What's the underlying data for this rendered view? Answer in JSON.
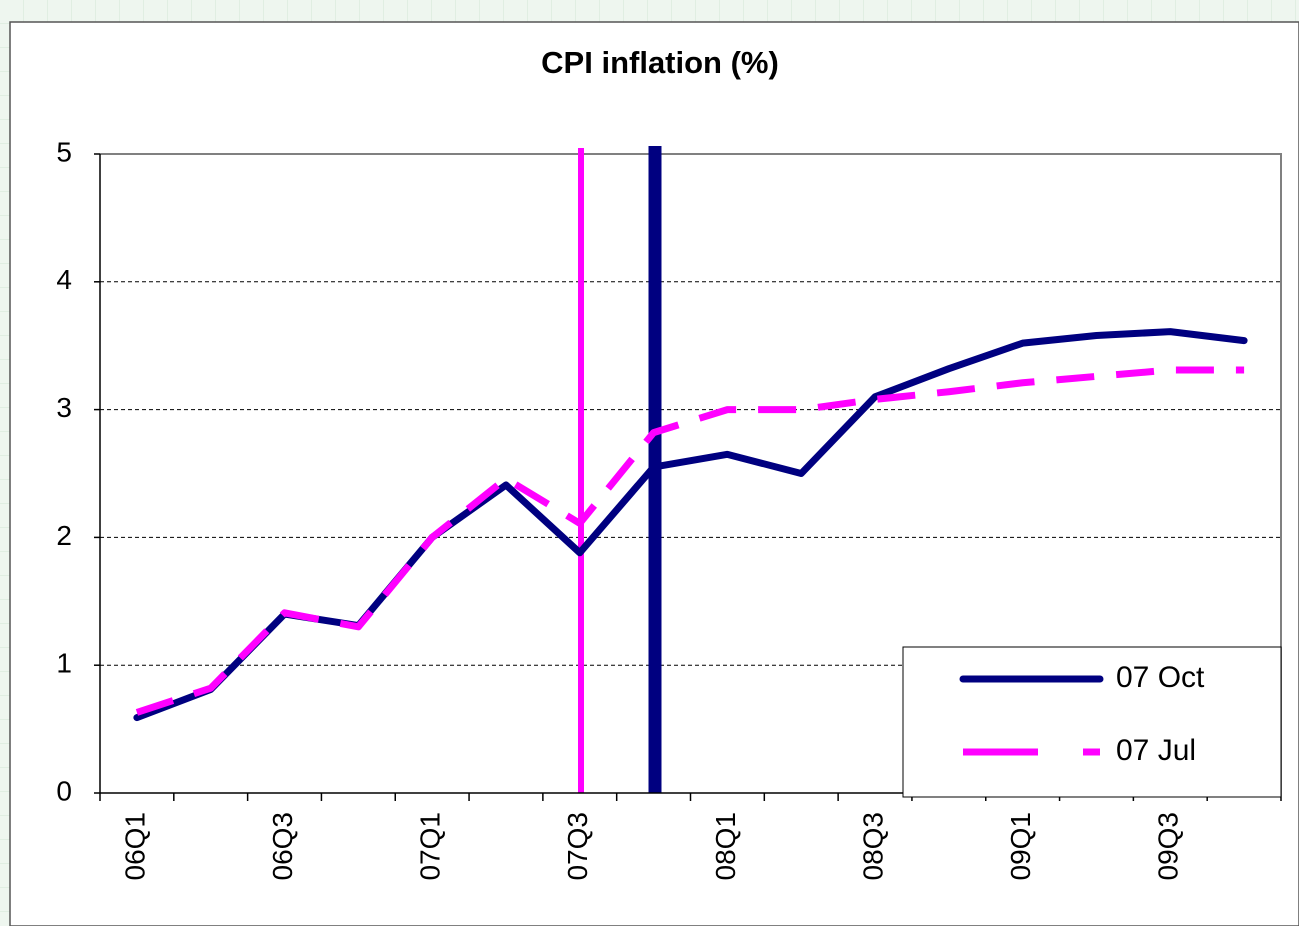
{
  "chart_data": {
    "type": "line",
    "title": "CPI inflation (%)",
    "categories": [
      "06Q1",
      null,
      "06Q3",
      null,
      "07Q1",
      null,
      "07Q3",
      null,
      "08Q1",
      null,
      "08Q3",
      null,
      "09Q1",
      null,
      "09Q3",
      null
    ],
    "series": [
      {
        "name": "07 Oct",
        "color": "#000080",
        "dash": false,
        "values": [
          0.59,
          0.81,
          1.4,
          1.31,
          2.0,
          2.41,
          1.88,
          2.55,
          2.65,
          2.5,
          3.1,
          3.32,
          3.52,
          3.58,
          3.61,
          3.54
        ]
      },
      {
        "name": "07 Jul",
        "color": "#ff00ff",
        "dash": true,
        "values": [
          0.63,
          0.82,
          1.41,
          1.3,
          2.0,
          2.46,
          2.11,
          2.82,
          3.0,
          3.0,
          3.08,
          3.14,
          3.21,
          3.26,
          3.31,
          3.31
        ]
      }
    ],
    "ylim": [
      0,
      5
    ],
    "yticks": [
      0,
      1,
      2,
      3,
      4,
      5
    ],
    "grid": true,
    "legend": "lower right"
  }
}
